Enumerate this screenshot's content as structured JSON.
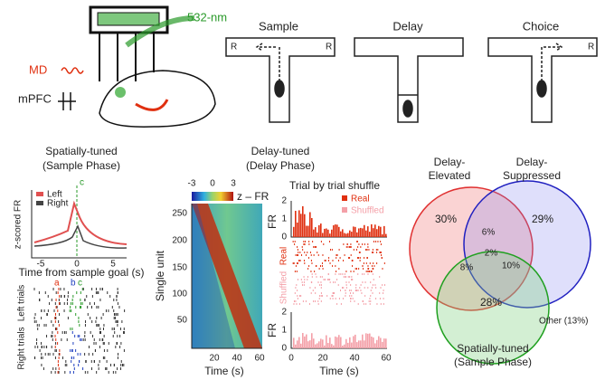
{
  "setup": {
    "laser": "532-nm",
    "md": "MD",
    "mpfc": "mPFC"
  },
  "task": {
    "sample": {
      "title": "Sample",
      "left": "R",
      "right": "R"
    },
    "delay": {
      "title": "Delay"
    },
    "choice": {
      "title": "Choice",
      "right": "R"
    }
  },
  "spatial": {
    "title": "Spatially-tuned",
    "subtitle": "(Sample Phase)",
    "ylabel": "z-scored FR",
    "legend": [
      "Left",
      "Right"
    ],
    "xticks": [
      "-5",
      "0",
      "5"
    ],
    "xlabel": "Time from sample goal (s)",
    "markers": [
      "a",
      "b",
      "c"
    ],
    "top_marker": "c",
    "raster_labels": [
      "Left trials",
      "Right trials"
    ]
  },
  "delay": {
    "title": "Delay-tuned",
    "subtitle": "(Delay Phase)",
    "colorbar_ticks": [
      "-3",
      "0",
      "3"
    ],
    "colorbar_label": "z – FR",
    "ylabel": "Single unit",
    "yticks": [
      "250",
      "200",
      "150",
      "100",
      "50"
    ],
    "xticks": [
      "20",
      "40",
      "60"
    ],
    "xlabel": "Time (s)"
  },
  "shuffle": {
    "title": "Trial by trial shuffle",
    "legend": [
      "Real",
      "Shuffled"
    ],
    "fr": "FR",
    "top_yticks": [
      "2",
      "1",
      "0"
    ],
    "bottom_yticks": [
      "2",
      "1",
      "0"
    ],
    "raster_labels": [
      "Real",
      "Shuffled"
    ],
    "xticks": [
      "0",
      "20",
      "40",
      "60"
    ],
    "xlabel": "Time (s)"
  },
  "venn": {
    "elevated": [
      "Delay-",
      "Elevated"
    ],
    "suppressed": [
      "Delay-",
      "Suppressed"
    ],
    "spatial": [
      "Spatially-tuned",
      "(Sample Phase)"
    ],
    "only_elevated": "30%",
    "only_suppressed": "29%",
    "only_spatial": "28%",
    "elevated_suppressed": "6%",
    "all_three": "2%",
    "elevated_spatial": "8%",
    "suppressed_spatial": "10%",
    "other": "Other (13%)"
  }
}
